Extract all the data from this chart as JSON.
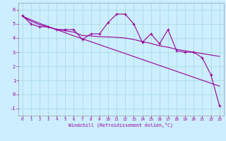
{
  "x": [
    0,
    1,
    2,
    3,
    4,
    5,
    6,
    7,
    8,
    9,
    10,
    11,
    12,
    13,
    14,
    15,
    16,
    17,
    18,
    19,
    20,
    21,
    22,
    23
  ],
  "y_main": [
    5.6,
    5.0,
    4.8,
    4.8,
    4.6,
    4.6,
    4.6,
    3.9,
    4.3,
    4.3,
    5.1,
    5.7,
    5.7,
    5.0,
    3.7,
    4.3,
    3.6,
    4.6,
    3.1,
    3.0,
    3.0,
    2.6,
    1.4,
    -0.8
  ],
  "y_smooth1": [
    5.55,
    5.2,
    4.95,
    4.78,
    4.62,
    4.52,
    4.42,
    4.18,
    4.15,
    4.1,
    4.08,
    4.05,
    4.0,
    3.9,
    3.75,
    3.62,
    3.45,
    3.35,
    3.2,
    3.1,
    3.0,
    2.9,
    2.8,
    2.7
  ],
  "y_linear": [
    5.55,
    5.3,
    5.05,
    4.82,
    4.6,
    4.38,
    4.16,
    3.95,
    3.74,
    3.53,
    3.32,
    3.11,
    2.9,
    2.69,
    2.48,
    2.27,
    2.06,
    1.85,
    1.64,
    1.43,
    1.22,
    1.01,
    0.8,
    0.59
  ],
  "line_color": "#990099",
  "bg_color": "#cceeff",
  "grid_color": "#aadddd",
  "xlabel": "Windchill (Refroidissement éolien,°C)",
  "ylim": [
    -1.5,
    6.5
  ],
  "xlim": [
    -0.5,
    23.5
  ],
  "yticks": [
    -1,
    0,
    1,
    2,
    3,
    4,
    5,
    6
  ],
  "xticks": [
    0,
    1,
    2,
    3,
    4,
    5,
    6,
    7,
    8,
    9,
    10,
    11,
    12,
    13,
    14,
    15,
    16,
    17,
    18,
    19,
    20,
    21,
    22,
    23
  ]
}
